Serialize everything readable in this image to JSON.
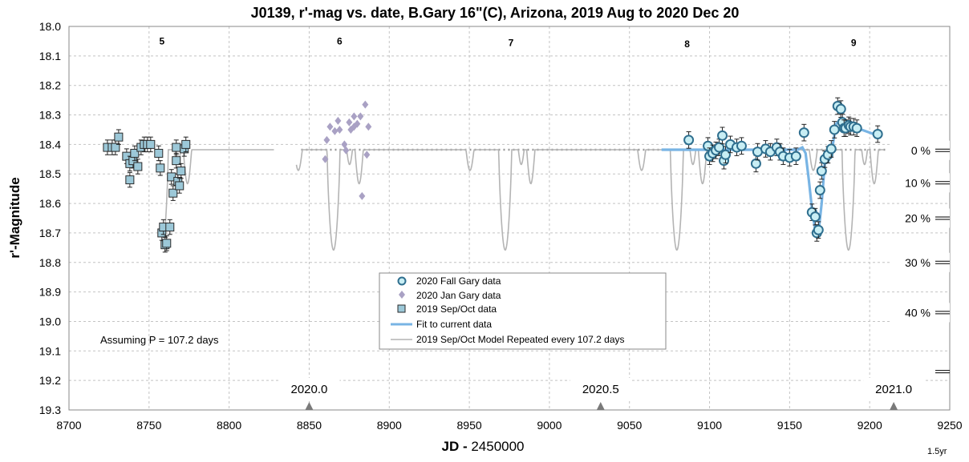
{
  "chart_data": {
    "type": "scatter",
    "title": "J0139, r'-mag vs. date, B.Gary 16\"(C), Arizona, 2019 Aug to 2020 Dec 20",
    "xlabel_bold": "JD -",
    "xlabel_rest": " 2450000",
    "ylabel": "r'-Magnitude",
    "xlim": [
      8700,
      9250
    ],
    "ylim": [
      18.0,
      19.3
    ],
    "y_reversed": true,
    "x_ticks": [
      "8700",
      "8750",
      "8800",
      "8850",
      "8900",
      "8950",
      "9000",
      "9050",
      "9100",
      "9150",
      "9200",
      "9250"
    ],
    "y_ticks": [
      "18.0",
      "18.1",
      "18.2",
      "18.3",
      "18.4",
      "18.5",
      "18.6",
      "18.7",
      "18.8",
      "18.9",
      "19.0",
      "19.1",
      "19.2",
      "19.3"
    ],
    "grid": true,
    "legend_position": "bottom-center",
    "note": "Assuming P =  107.2 days",
    "corner_label": "1.5yr",
    "cycle_labels": [
      {
        "label": "5",
        "x": 8758,
        "y": 18.05
      },
      {
        "label": "6",
        "x": 8869,
        "y": 18.05
      },
      {
        "label": "7",
        "x": 8976,
        "y": 18.055
      },
      {
        "label": "8",
        "x": 9086,
        "y": 18.06
      },
      {
        "label": "9",
        "x": 9190,
        "y": 18.055
      }
    ],
    "year_markers": [
      {
        "label": "2020.0",
        "x": 8850
      },
      {
        "label": "2020.5",
        "x": 9032
      },
      {
        "label": "2021.0",
        "x": 9215
      }
    ],
    "percent_labels": [
      "0 %",
      "10 %",
      "20 %",
      "30 %",
      "40 %"
    ],
    "percent_mags": [
      18.42,
      18.53,
      18.65,
      18.8,
      18.97
    ],
    "percent_extra_mag": 19.17,
    "colors": {
      "fall_edge": "#2f6f8f",
      "fall_fill": "#c8eef4",
      "jan": "#a9a1c4",
      "sepoct_fill": "#9cc8d8",
      "fit": "#78b4e4",
      "model": "#b4b4b4",
      "baseline": "#999999",
      "grid": "#c4c4c4"
    },
    "baseline_mag": 18.418,
    "series": [
      {
        "name": "2020 Fall Gary data",
        "marker": "circle",
        "points": [
          [
            9087,
            18.385
          ],
          [
            9099,
            18.405
          ],
          [
            9100,
            18.44
          ],
          [
            9102,
            18.43
          ],
          [
            9104,
            18.42
          ],
          [
            9106,
            18.41
          ],
          [
            9108,
            18.37
          ],
          [
            9109,
            18.455
          ],
          [
            9110,
            18.435
          ],
          [
            9113,
            18.4
          ],
          [
            9117,
            18.41
          ],
          [
            9120,
            18.405
          ],
          [
            9129,
            18.465
          ],
          [
            9130,
            18.425
          ],
          [
            9135,
            18.415
          ],
          [
            9138,
            18.425
          ],
          [
            9142,
            18.41
          ],
          [
            9144,
            18.425
          ],
          [
            9146,
            18.44
          ],
          [
            9150,
            18.445
          ],
          [
            9154,
            18.44
          ],
          [
            9159,
            18.36
          ],
          [
            9164,
            18.63
          ],
          [
            9166,
            18.645
          ],
          [
            9167,
            18.7
          ],
          [
            9168,
            18.69
          ],
          [
            9169,
            18.555
          ],
          [
            9170,
            18.49
          ],
          [
            9172,
            18.45
          ],
          [
            9174,
            18.435
          ],
          [
            9176,
            18.415
          ],
          [
            9178,
            18.35
          ],
          [
            9180,
            18.27
          ],
          [
            9182,
            18.28
          ],
          [
            9183,
            18.325
          ],
          [
            9184,
            18.345
          ],
          [
            9185,
            18.345
          ],
          [
            9187,
            18.335
          ],
          [
            9188,
            18.34
          ],
          [
            9190,
            18.34
          ],
          [
            9192,
            18.345
          ],
          [
            9205,
            18.365
          ]
        ]
      },
      {
        "name": "2020 Jan Gary data",
        "marker": "diamond",
        "points": [
          [
            8860,
            18.45
          ],
          [
            8861,
            18.385
          ],
          [
            8863,
            18.34
          ],
          [
            8866,
            18.355
          ],
          [
            8868,
            18.32
          ],
          [
            8869,
            18.35
          ],
          [
            8872,
            18.4
          ],
          [
            8873,
            18.42
          ],
          [
            8875,
            18.325
          ],
          [
            8876,
            18.35
          ],
          [
            8878,
            18.34
          ],
          [
            8878,
            18.305
          ],
          [
            8880,
            18.33
          ],
          [
            8882,
            18.305
          ],
          [
            8883,
            18.575
          ],
          [
            8885,
            18.265
          ],
          [
            8886,
            18.435
          ],
          [
            8887,
            18.34
          ]
        ]
      },
      {
        "name": "2019 Sep/Oct data",
        "marker": "square",
        "points": [
          [
            8724,
            18.41
          ],
          [
            8727,
            18.41
          ],
          [
            8729,
            18.41
          ],
          [
            8731,
            18.375
          ],
          [
            8736,
            18.44
          ],
          [
            8738,
            18.465
          ],
          [
            8738,
            18.52
          ],
          [
            8740,
            18.455
          ],
          [
            8741,
            18.43
          ],
          [
            8743,
            18.475
          ],
          [
            8745,
            18.41
          ],
          [
            8747,
            18.4
          ],
          [
            8749,
            18.4
          ],
          [
            8751,
            18.4
          ],
          [
            8756,
            18.43
          ],
          [
            8757,
            18.48
          ],
          [
            8758,
            18.7
          ],
          [
            8759,
            18.68
          ],
          [
            8760,
            18.74
          ],
          [
            8761,
            18.735
          ],
          [
            8763,
            18.68
          ],
          [
            8764,
            18.51
          ],
          [
            8765,
            18.565
          ],
          [
            8767,
            18.455
          ],
          [
            8767,
            18.41
          ],
          [
            8768,
            18.525
          ],
          [
            8769,
            18.54
          ],
          [
            8770,
            18.49
          ],
          [
            8772,
            18.415
          ],
          [
            8773,
            18.4
          ]
        ]
      },
      {
        "name": "Fit to current data",
        "marker": "line",
        "points": [
          [
            9070,
            18.418
          ],
          [
            9155,
            18.418
          ],
          [
            9158,
            18.41
          ],
          [
            9160,
            18.43
          ],
          [
            9162,
            18.52
          ],
          [
            9164,
            18.62
          ],
          [
            9166,
            18.69
          ],
          [
            9168,
            18.7
          ],
          [
            9170,
            18.6
          ],
          [
            9172,
            18.46
          ],
          [
            9175,
            18.42
          ],
          [
            9177,
            18.4
          ],
          [
            9179,
            18.33
          ],
          [
            9181,
            18.32
          ],
          [
            9183,
            18.33
          ],
          [
            9186,
            18.34
          ],
          [
            9190,
            18.345
          ],
          [
            9195,
            18.35
          ],
          [
            9200,
            18.36
          ],
          [
            9205,
            18.37
          ]
        ]
      },
      {
        "name": "2019 Sep/Oct Model Repeated every 107.2 days",
        "marker": "line",
        "period": 107.2
      }
    ]
  }
}
